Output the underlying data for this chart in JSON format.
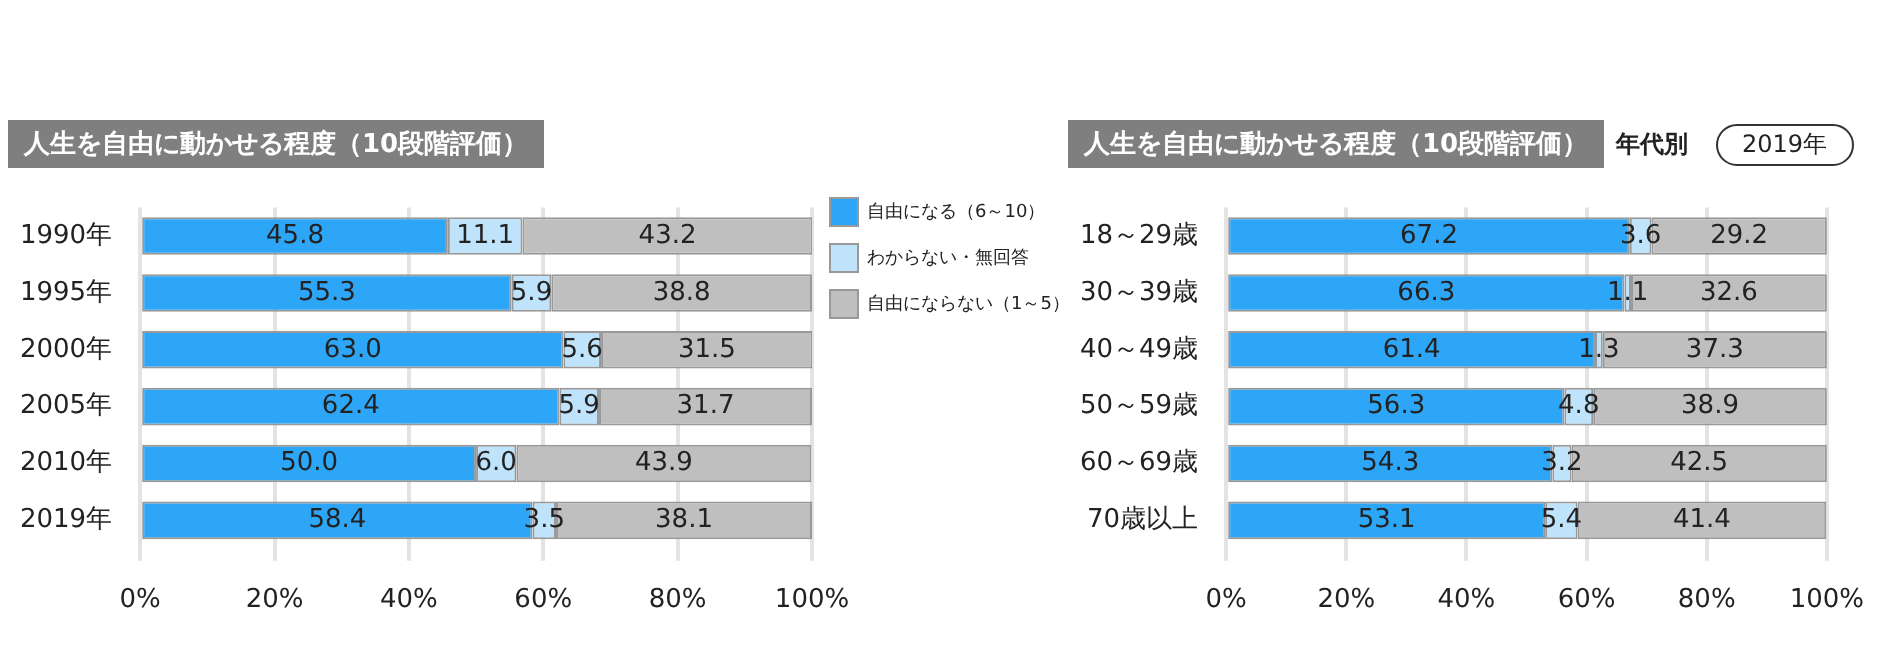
{
  "chart_data": [
    {
      "type": "bar",
      "orientation": "horizontal",
      "stacked": true,
      "title": "人生を自由に動かせる程度（10段階評価）",
      "categories": [
        "1990年",
        "1995年",
        "2000年",
        "2005年",
        "2010年",
        "2019年"
      ],
      "series": [
        {
          "name": "自由になる（6～10）",
          "color": "#2ea6f7",
          "values": [
            45.8,
            55.3,
            63.0,
            62.4,
            50.0,
            58.4
          ],
          "value_labels": [
            "45.8",
            "55.3",
            "63.0",
            "62.4",
            "50.0",
            "58.4"
          ]
        },
        {
          "name": "わからない・無回答",
          "color": "#bfe3fb",
          "values": [
            11.1,
            5.9,
            5.6,
            5.9,
            6.0,
            3.5
          ],
          "value_labels": [
            "11.1",
            "5.9",
            "5.6",
            "5.9",
            "6.0",
            "3.5"
          ]
        },
        {
          "name": "自由にならない（1～5）",
          "color": "#bfbfbf",
          "values": [
            43.2,
            38.8,
            31.5,
            31.7,
            43.9,
            38.1
          ],
          "value_labels": [
            "43.2",
            "38.8",
            "31.5",
            "31.7",
            "43.9",
            "38.1"
          ]
        }
      ],
      "xlim": [
        0,
        100
      ],
      "xticks": [
        {
          "value": 0,
          "label": "0%"
        },
        {
          "value": 20,
          "label": "20%"
        },
        {
          "value": 40,
          "label": "40%"
        },
        {
          "value": 60,
          "label": "60%"
        },
        {
          "value": 80,
          "label": "80%"
        },
        {
          "value": 100,
          "label": "100%"
        }
      ],
      "grid": "x",
      "legend": "right"
    },
    {
      "type": "bar",
      "orientation": "horizontal",
      "stacked": true,
      "title": "人生を自由に動かせる程度（10段階評価）",
      "subtitle": "年代別",
      "annotations": [
        "2019年"
      ],
      "categories": [
        "18～29歳",
        "30～39歳",
        "40～49歳",
        "50～59歳",
        "60～69歳",
        "70歳以上"
      ],
      "series": [
        {
          "color": "#2ea6f7",
          "values": [
            67.2,
            66.3,
            61.4,
            56.3,
            54.3,
            53.1
          ],
          "value_labels": [
            "67.2",
            "66.3",
            "61.4",
            "56.3",
            "54.3",
            "53.1"
          ]
        },
        {
          "color": "#bfe3fb",
          "values": [
            3.6,
            1.1,
            1.3,
            4.8,
            3.2,
            5.4
          ],
          "value_labels": [
            "3.6",
            "1.1",
            "1.3",
            "4.8",
            "3.2",
            "5.4"
          ]
        },
        {
          "color": "#bfbfbf",
          "values": [
            29.2,
            32.6,
            37.3,
            38.9,
            42.5,
            41.4
          ],
          "value_labels": [
            "29.2",
            "32.6",
            "37.3",
            "38.9",
            "42.5",
            "41.4"
          ]
        }
      ],
      "xlim": [
        0,
        100
      ],
      "xticks": [
        {
          "value": 0,
          "label": "0%"
        },
        {
          "value": 20,
          "label": "20%"
        },
        {
          "value": 40,
          "label": "40%"
        },
        {
          "value": 60,
          "label": "60%"
        },
        {
          "value": 80,
          "label": "80%"
        },
        {
          "value": 100,
          "label": "100%"
        }
      ],
      "grid": "x"
    }
  ]
}
